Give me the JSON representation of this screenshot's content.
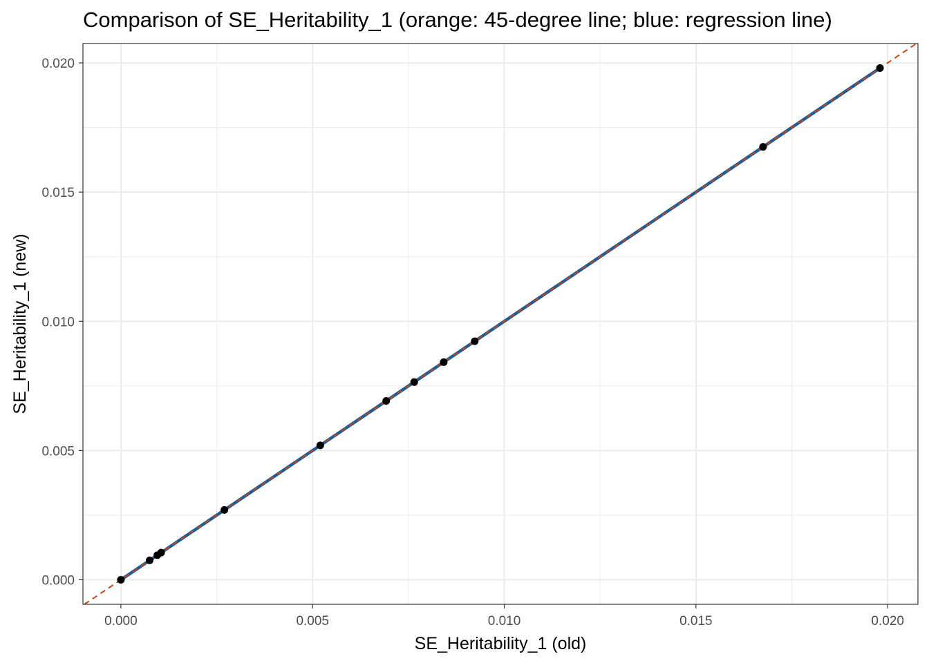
{
  "chart_data": {
    "type": "scatter",
    "title": "Comparison of SE_Heritability_1 (orange: 45-degree line; blue: regression line)",
    "xlabel": "SE_Heritability_1 (old)",
    "ylabel": "SE_Heritability_1 (new)",
    "xlim": [
      -0.00099,
      0.02079
    ],
    "ylim": [
      -0.00095,
      0.02075
    ],
    "x_ticks": [
      0.0,
      0.005,
      0.01,
      0.015,
      0.02
    ],
    "y_ticks": [
      0.0,
      0.005,
      0.01,
      0.015,
      0.02
    ],
    "x_tick_labels": [
      "0.000",
      "0.005",
      "0.010",
      "0.015",
      "0.020"
    ],
    "y_tick_labels": [
      "0.000",
      "0.005",
      "0.010",
      "0.015",
      "0.020"
    ],
    "grid": true,
    "points": [
      {
        "x": 0.0,
        "y": 0.0
      },
      {
        "x": 0.00075,
        "y": 0.00075
      },
      {
        "x": 0.00095,
        "y": 0.00095
      },
      {
        "x": 0.00105,
        "y": 0.00105
      },
      {
        "x": 0.0027,
        "y": 0.0027
      },
      {
        "x": 0.0052,
        "y": 0.0052
      },
      {
        "x": 0.00692,
        "y": 0.00692
      },
      {
        "x": 0.00765,
        "y": 0.00765
      },
      {
        "x": 0.00842,
        "y": 0.00842
      },
      {
        "x": 0.00923,
        "y": 0.00923
      },
      {
        "x": 0.01675,
        "y": 0.01675
      },
      {
        "x": 0.0198,
        "y": 0.0198
      }
    ],
    "reference_line": {
      "name": "45-degree line",
      "slope": 1,
      "intercept": 0,
      "color": "#c0461a",
      "style": "dashed"
    },
    "regression_line": {
      "name": "regression line",
      "slope": 1,
      "intercept": 0,
      "x_range": [
        0.0,
        0.0198
      ],
      "color": "#1c5c99"
    },
    "point_color": "#000000",
    "grid_color": "#ebebeb",
    "panel_border_color": "#333333"
  }
}
